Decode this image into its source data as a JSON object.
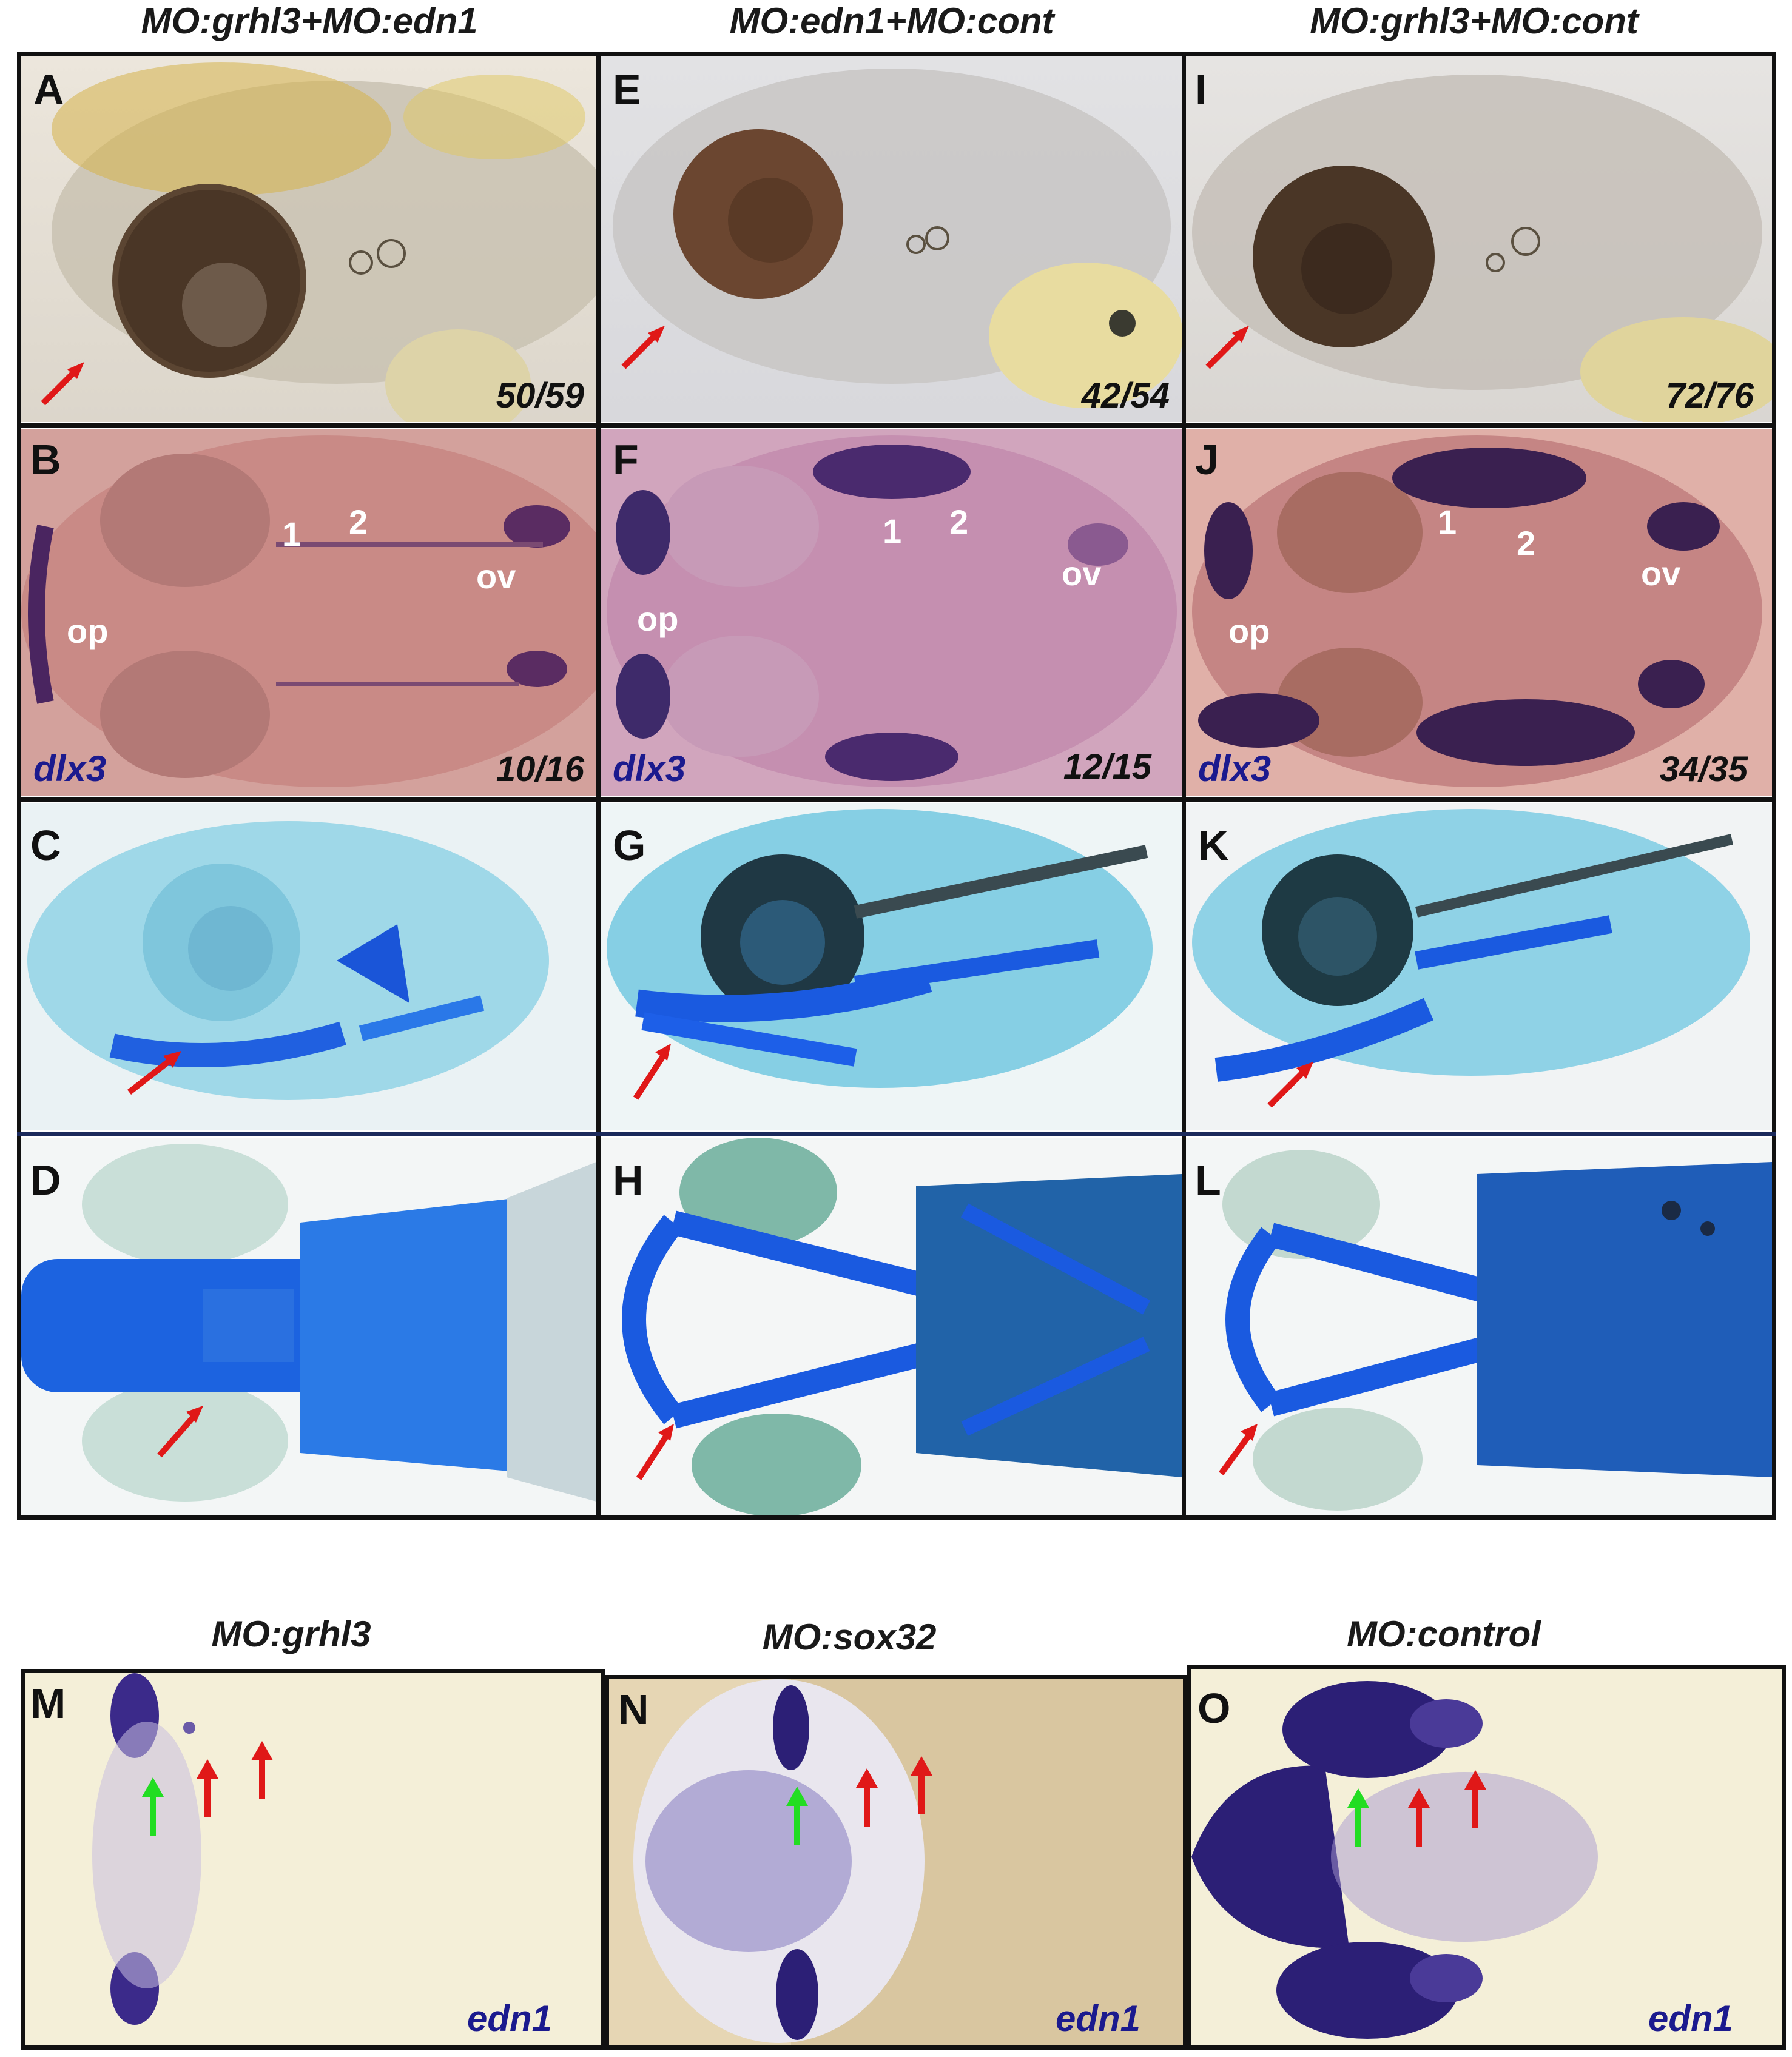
{
  "top_titles": [
    "MO:grhl3+MO:edn1",
    "MO:edn1+MO:cont",
    "MO:grhl3+MO:cont"
  ],
  "bottom_titles": [
    "MO:grhl3",
    "MO:sox32",
    "MO:control"
  ],
  "panels": {
    "A": {
      "label": "A",
      "count": "50/59"
    },
    "B": {
      "label": "B",
      "count": "10/16",
      "gene": "dlx3",
      "marks": [
        "op",
        "1",
        "2",
        "ov"
      ]
    },
    "C": {
      "label": "C"
    },
    "D": {
      "label": "D"
    },
    "E": {
      "label": "E",
      "count": "42/54"
    },
    "F": {
      "label": "F",
      "count": "12/15",
      "gene": "dlx3",
      "marks": [
        "op",
        "1",
        "2",
        "ov"
      ]
    },
    "G": {
      "label": "G"
    },
    "H": {
      "label": "H"
    },
    "I": {
      "label": "I",
      "count": "72/76"
    },
    "J": {
      "label": "J",
      "count": "34/35",
      "gene": "dlx3",
      "marks": [
        "op",
        "1",
        "2",
        "ov"
      ]
    },
    "K": {
      "label": "K"
    },
    "L": {
      "label": "L"
    },
    "M": {
      "label": "M",
      "gene": "edn1"
    },
    "N": {
      "label": "N",
      "gene": "edn1"
    },
    "O": {
      "label": "O",
      "gene": "edn1"
    }
  },
  "colors": {
    "arrow_red": "#e01818",
    "arrow_green": "#22dd22",
    "gene_label": "#1b1a8e",
    "alcian_blue": "#1a5fe0",
    "stain_bg": "#c98a86"
  }
}
